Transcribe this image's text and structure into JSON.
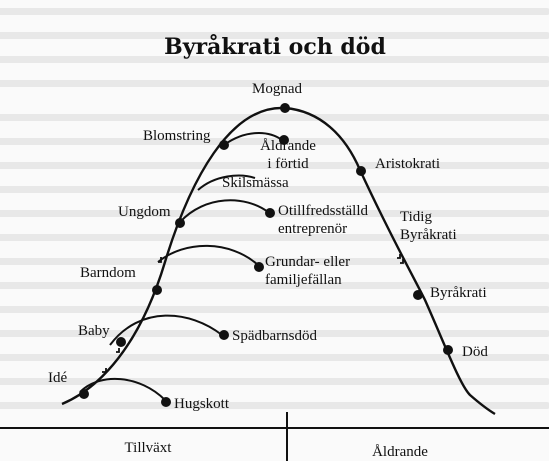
{
  "diagram": {
    "title": "Byråkrati och död",
    "stages": {
      "ide": "Idé",
      "baby": "Baby",
      "barndom": "Barndom",
      "ungdom": "Ungdom",
      "blomstring": "Blomstring",
      "mognad": "Mognad",
      "aristokrati": "Aristokrati",
      "tidig_byrakrati_1": "Tidig",
      "tidig_byrakrati_2": "Byråkrati",
      "byrakrati": "Byråkrati",
      "dod": "Död"
    },
    "failures": {
      "hugskott": "Hugskott",
      "spadbarnsdod": "Spädbarnsdöd",
      "grundare_1": "Grundar- eller",
      "grundare_2": "familjefällan",
      "otillfredsstalld_1": "Otillfredsställd",
      "otillfredsstalld_2": "entreprenör",
      "skilsmassa": "Skilsmässa",
      "aldrande_1": "Åldrande",
      "aldrande_2": "i förtid"
    },
    "axis": {
      "growth": "Tillväxt",
      "aging": "Åldrande"
    }
  }
}
